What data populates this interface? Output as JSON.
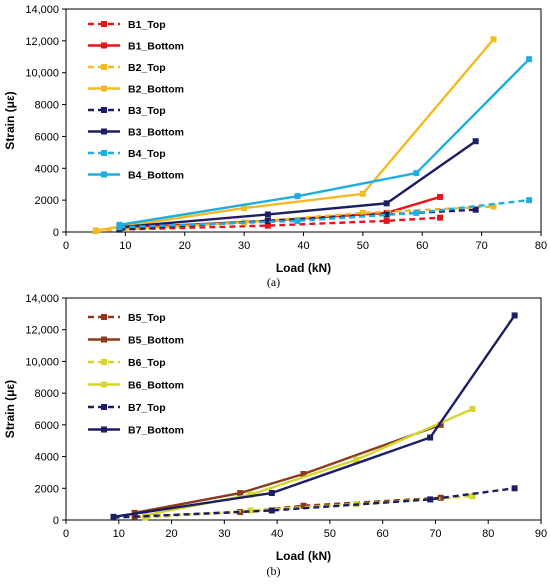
{
  "chart_data": [
    {
      "type": "line",
      "caption": "(a)",
      "xlabel": "Load (kN)",
      "ylabel": "Strain (με)",
      "xlim": [
        0,
        80
      ],
      "ylim": [
        0,
        14000
      ],
      "xticks": [
        0,
        10,
        20,
        30,
        40,
        50,
        60,
        70,
        80
      ],
      "yticks": [
        0,
        2000,
        4000,
        6000,
        8000,
        10000,
        12000,
        14000
      ],
      "ytick_labels": [
        "0",
        "2000",
        "4000",
        "6000",
        "8000",
        "10,000",
        "12,000",
        "14,000"
      ],
      "grid": false,
      "legend_position": "top-left",
      "series": [
        {
          "name": "B1_Top",
          "color": "#e8141b",
          "dash": true,
          "points": [
            [
              9,
              150
            ],
            [
              34,
              400
            ],
            [
              54,
              700
            ],
            [
              63,
              900
            ]
          ]
        },
        {
          "name": "B1_Bottom",
          "color": "#e8141b",
          "dash": false,
          "points": [
            [
              9,
              250
            ],
            [
              34,
              700
            ],
            [
              54,
              1200
            ],
            [
              63,
              2200
            ]
          ]
        },
        {
          "name": "B2_Top",
          "color": "#f5b921",
          "dash": true,
          "points": [
            [
              5,
              50
            ],
            [
              30,
              600
            ],
            [
              50,
              1200
            ],
            [
              72,
              1600
            ]
          ]
        },
        {
          "name": "B2_Bottom",
          "color": "#f5b921",
          "dash": false,
          "points": [
            [
              5,
              100
            ],
            [
              30,
              1500
            ],
            [
              50,
              2400
            ],
            [
              72,
              12100
            ]
          ]
        },
        {
          "name": "B3_Top",
          "color": "#1b1e62",
          "dash": true,
          "points": [
            [
              9,
              150
            ],
            [
              34,
              700
            ],
            [
              54,
              1100
            ],
            [
              69,
              1400
            ]
          ]
        },
        {
          "name": "B3_Bottom",
          "color": "#1b1e62",
          "dash": false,
          "points": [
            [
              9,
              300
            ],
            [
              34,
              1100
            ],
            [
              54,
              1800
            ],
            [
              69,
              5700
            ]
          ]
        },
        {
          "name": "B4_Top",
          "color": "#1eaee0",
          "dash": true,
          "points": [
            [
              9,
              300
            ],
            [
              39,
              700
            ],
            [
              59,
              1200
            ],
            [
              78,
              2000
            ]
          ]
        },
        {
          "name": "B4_Bottom",
          "color": "#1eaee0",
          "dash": false,
          "points": [
            [
              9,
              450
            ],
            [
              39,
              2250
            ],
            [
              59,
              3700
            ],
            [
              78,
              10850
            ]
          ]
        }
      ]
    },
    {
      "type": "line",
      "caption": "(b)",
      "xlabel": "Load (kN)",
      "ylabel": "Strain (με)",
      "xlim": [
        0,
        90
      ],
      "ylim": [
        0,
        14000
      ],
      "xticks": [
        0,
        10,
        20,
        30,
        40,
        50,
        60,
        70,
        80,
        90
      ],
      "yticks": [
        0,
        2000,
        4000,
        6000,
        8000,
        10000,
        12000,
        14000
      ],
      "ytick_labels": [
        "0",
        "2000",
        "4000",
        "6000",
        "8000",
        "10,000",
        "12,000",
        "14,000"
      ],
      "grid": false,
      "legend_position": "top-left",
      "series": [
        {
          "name": "B5_Top",
          "color": "#8b3b1a",
          "dash": true,
          "points": [
            [
              13,
              200
            ],
            [
              33,
              500
            ],
            [
              45,
              900
            ],
            [
              71,
              1400
            ]
          ]
        },
        {
          "name": "B5_Bottom",
          "color": "#8b3b1a",
          "dash": false,
          "points": [
            [
              13,
              450
            ],
            [
              33,
              1700
            ],
            [
              45,
              2900
            ],
            [
              71,
              6000
            ]
          ]
        },
        {
          "name": "B6_Top",
          "color": "#d4d62c",
          "dash": true,
          "points": [
            [
              15,
              150
            ],
            [
              35,
              600
            ],
            [
              55,
              1000
            ],
            [
              77,
              1500
            ]
          ]
        },
        {
          "name": "B6_Bottom",
          "color": "#d4d62c",
          "dash": false,
          "points": [
            [
              15,
              300
            ],
            [
              35,
              1600
            ],
            [
              55,
              3800
            ],
            [
              77,
              7000
            ]
          ]
        },
        {
          "name": "B7_Top",
          "color": "#1b1e62",
          "dash": true,
          "points": [
            [
              9,
              150
            ],
            [
              39,
              600
            ],
            [
              69,
              1300
            ],
            [
              85,
              2000
            ]
          ]
        },
        {
          "name": "B7_Bottom",
          "color": "#1b1e62",
          "dash": false,
          "points": [
            [
              9,
              200
            ],
            [
              39,
              1700
            ],
            [
              69,
              5200
            ],
            [
              85,
              12900
            ]
          ]
        }
      ]
    }
  ]
}
